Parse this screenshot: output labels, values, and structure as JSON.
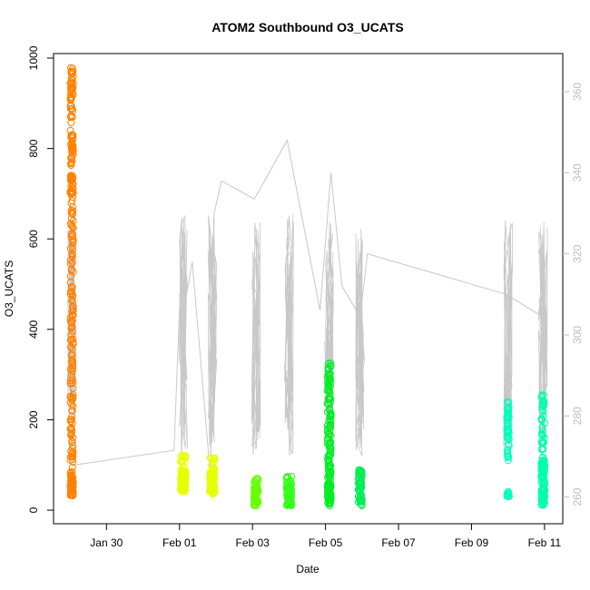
{
  "chart_data": {
    "type": "scatter",
    "title": "ATOM2 Southbound O3_UCATS",
    "xlabel": "Date",
    "ylabel": "O3_UCATS",
    "x_ticks": [
      "Jan 30",
      "Feb 01",
      "Feb 03",
      "Feb 05",
      "Feb 07",
      "Feb 09",
      "Feb 11"
    ],
    "x_tick_days": [
      0,
      2,
      4,
      6,
      8,
      10,
      12
    ],
    "xlim_days": [
      -1.45,
      12.5
    ],
    "ylim": [
      -30,
      1010
    ],
    "y_ticks": [
      0,
      200,
      400,
      600,
      800,
      1000
    ],
    "y2_ticks": [
      260,
      280,
      300,
      320,
      340,
      360
    ],
    "y2lim": [
      253.4,
      369.4
    ],
    "grid": false,
    "legend": "none",
    "series": [
      {
        "color": "#ff8000",
        "x_center": -0.95,
        "x_spread": 0.04,
        "clusters": [
          [
            30,
            70,
            40
          ],
          [
            70,
            300,
            60
          ],
          [
            300,
            700,
            90
          ],
          [
            700,
            980,
            110
          ]
        ]
      },
      {
        "color": "#e6ff00",
        "x_center": 2.1,
        "x_spread": 0.07,
        "clusters": [
          [
            40,
            90,
            80
          ],
          [
            90,
            125,
            15
          ]
        ]
      },
      {
        "color": "#e6ff00",
        "x_center": 2.9,
        "x_spread": 0.07,
        "clusters": [
          [
            35,
            90,
            80
          ],
          [
            90,
            120,
            12
          ]
        ]
      },
      {
        "color": "#66ff00",
        "x_center": 4.1,
        "x_spread": 0.06,
        "clusters": [
          [
            10,
            50,
            60
          ],
          [
            50,
            70,
            10
          ]
        ]
      },
      {
        "color": "#33ff1a",
        "x_center": 5.0,
        "x_spread": 0.07,
        "clusters": [
          [
            10,
            60,
            70
          ],
          [
            60,
            75,
            8
          ]
        ]
      },
      {
        "color": "#00ee22",
        "x_center": 6.1,
        "x_spread": 0.05,
        "clusters": [
          [
            10,
            60,
            60
          ],
          [
            60,
            200,
            60
          ],
          [
            200,
            330,
            50
          ]
        ]
      },
      {
        "color": "#00ee55",
        "x_center": 6.95,
        "x_spread": 0.05,
        "clusters": [
          [
            10,
            90,
            70
          ]
        ]
      },
      {
        "color": "#00ffbb",
        "x_center": 11.0,
        "x_spread": 0.03,
        "clusters": [
          [
            30,
            45,
            12
          ],
          [
            110,
            240,
            50
          ]
        ]
      },
      {
        "color": "#00ffaa",
        "x_center": 11.96,
        "x_spread": 0.05,
        "clusters": [
          [
            10,
            110,
            100
          ],
          [
            110,
            260,
            40
          ]
        ]
      }
    ],
    "secondary_series": {
      "color": "#c8c8c8",
      "x": [
        -0.95,
        1.85,
        2.05,
        2.15,
        2.35,
        2.85,
        2.95,
        3.15,
        4.05,
        4.95,
        5.85,
        6.15,
        6.45,
        6.95,
        7.15,
        10.95,
        11.85,
        11.98
      ],
      "y": [
        267.8,
        271.5,
        318,
        308,
        318,
        265,
        330,
        338,
        333.5,
        348,
        306,
        340,
        312,
        304.5,
        320,
        310,
        305,
        323
      ]
    }
  }
}
